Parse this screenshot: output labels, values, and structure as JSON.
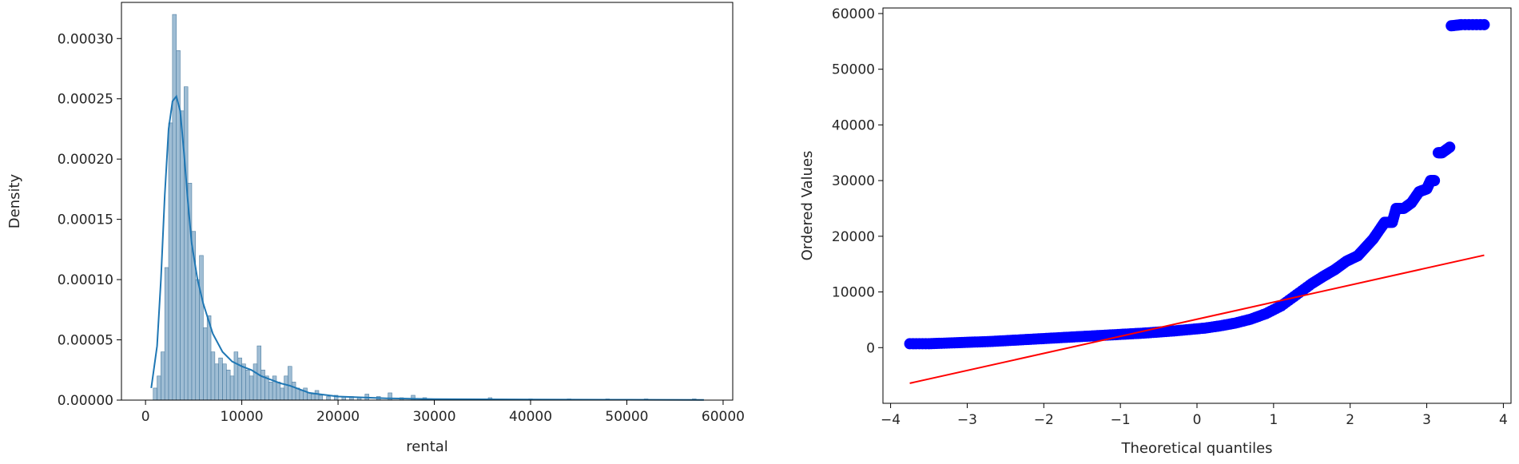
{
  "chart_data": [
    {
      "type": "bar",
      "subtype": "histogram with kde",
      "xlabel": "rental",
      "ylabel": "Density",
      "xlim": [
        -2500,
        61000
      ],
      "ylim": [
        0,
        0.00033
      ],
      "xticks": [
        0,
        10000,
        20000,
        30000,
        40000,
        50000,
        60000
      ],
      "xtick_labels": [
        "0",
        "10000",
        "20000",
        "30000",
        "40000",
        "50000",
        "60000"
      ],
      "yticks": [
        0,
        5e-05,
        0.0001,
        0.00015,
        0.0002,
        0.00025,
        0.0003
      ],
      "ytick_labels": [
        "0.00000",
        "0.00005",
        "0.00010",
        "0.00015",
        "0.00020",
        "0.00025",
        "0.00030"
      ],
      "grid": false,
      "colors": {
        "bars": "#7fa7c6",
        "bar_edge": "#4f7fa3",
        "kde": "#1f77b4"
      },
      "histogram": {
        "bin_width": 400,
        "bins": [
          [
            1000,
            1e-05
          ],
          [
            1400,
            2e-05
          ],
          [
            1800,
            4e-05
          ],
          [
            2200,
            0.00011
          ],
          [
            2600,
            0.00023
          ],
          [
            3000,
            0.00032
          ],
          [
            3400,
            0.00029
          ],
          [
            3800,
            0.00024
          ],
          [
            4200,
            0.00026
          ],
          [
            4600,
            0.00018
          ],
          [
            5000,
            0.00014
          ],
          [
            5400,
            0.0001
          ],
          [
            5800,
            0.00012
          ],
          [
            6200,
            6e-05
          ],
          [
            6600,
            7e-05
          ],
          [
            7000,
            4e-05
          ],
          [
            7400,
            3e-05
          ],
          [
            7800,
            3.5e-05
          ],
          [
            8200,
            3e-05
          ],
          [
            8600,
            2.5e-05
          ],
          [
            9000,
            2e-05
          ],
          [
            9400,
            4e-05
          ],
          [
            9800,
            3.5e-05
          ],
          [
            10200,
            3e-05
          ],
          [
            10600,
            2.5e-05
          ],
          [
            11000,
            2e-05
          ],
          [
            11400,
            3e-05
          ],
          [
            11800,
            4.5e-05
          ],
          [
            12200,
            2.5e-05
          ],
          [
            12600,
            2e-05
          ],
          [
            13000,
            1.5e-05
          ],
          [
            13400,
            2e-05
          ],
          [
            13800,
            1.5e-05
          ],
          [
            14200,
            1e-05
          ],
          [
            14600,
            2e-05
          ],
          [
            15000,
            2.8e-05
          ],
          [
            15400,
            1.5e-05
          ],
          [
            15800,
            1e-05
          ],
          [
            16200,
            8e-06
          ],
          [
            16600,
            1e-05
          ],
          [
            17000,
            6e-06
          ],
          [
            17400,
            5e-06
          ],
          [
            17800,
            8e-06
          ],
          [
            18200,
            4e-06
          ],
          [
            19000,
            3e-06
          ],
          [
            19800,
            4e-06
          ],
          [
            20600,
            3e-06
          ],
          [
            21400,
            3e-06
          ],
          [
            22200,
            2e-06
          ],
          [
            23000,
            5e-06
          ],
          [
            24200,
            3e-06
          ],
          [
            25400,
            6e-06
          ],
          [
            26600,
            2e-06
          ],
          [
            27800,
            4e-06
          ],
          [
            29000,
            2e-06
          ],
          [
            30200,
            1e-06
          ],
          [
            33000,
            1e-06
          ],
          [
            35800,
            2e-06
          ],
          [
            40000,
            1e-06
          ],
          [
            44000,
            1e-06
          ],
          [
            48000,
            1e-06
          ],
          [
            52000,
            1e-06
          ],
          [
            57000,
            1e-06
          ]
        ]
      },
      "kde": {
        "x": [
          600,
          1200,
          1600,
          2000,
          2400,
          2800,
          3200,
          3600,
          4000,
          4400,
          4800,
          5400,
          6000,
          7000,
          8000,
          9000,
          10000,
          11000,
          12000,
          13000,
          14000,
          15000,
          16000,
          17000,
          18000,
          20000,
          25000,
          30000,
          40000,
          50000,
          58000
        ],
        "y": [
          1e-05,
          4.5e-05,
          0.0001,
          0.00017,
          0.000225,
          0.000248,
          0.000252,
          0.00024,
          0.000205,
          0.000165,
          0.00013,
          0.0001,
          8e-05,
          5.5e-05,
          4e-05,
          3.2e-05,
          2.8e-05,
          2.5e-05,
          2e-05,
          1.7e-05,
          1.4e-05,
          1.2e-05,
          9e-06,
          6e-06,
          5e-06,
          3e-06,
          1.5e-06,
          8e-07,
          5e-07,
          3e-07,
          2e-07
        ]
      }
    },
    {
      "type": "scatter",
      "subtype": "probability plot",
      "xlabel": "Theoretical quantiles",
      "ylabel": "Ordered Values",
      "xlim": [
        -4.1,
        4.1
      ],
      "ylim": [
        -10000,
        61000
      ],
      "xticks": [
        -4,
        -3,
        -2,
        -1,
        0,
        1,
        2,
        3,
        4
      ],
      "xtick_labels": [
        "−4",
        "−3",
        "−2",
        "−1",
        "0",
        "1",
        "2",
        "3",
        "4"
      ],
      "yticks": [
        0,
        10000,
        20000,
        30000,
        40000,
        50000,
        60000
      ],
      "ytick_labels": [
        "0",
        "10000",
        "20000",
        "30000",
        "40000",
        "50000",
        "60000"
      ],
      "grid": false,
      "colors": {
        "points": "#0000ff",
        "fit_line": "#ff0000"
      },
      "fit_line": {
        "x": [
          -3.75,
          3.75
        ],
        "y": [
          -6400,
          16600
        ]
      },
      "points": {
        "x": [
          -3.75,
          -3.5,
          -3.3,
          -3.1,
          -2.9,
          -2.7,
          -2.5,
          -2.3,
          -2.1,
          -1.9,
          -1.7,
          -1.5,
          -1.3,
          -1.1,
          -0.9,
          -0.7,
          -0.5,
          -0.3,
          -0.1,
          0.1,
          0.3,
          0.5,
          0.7,
          0.9,
          1.1,
          1.3,
          1.5,
          1.65,
          1.8,
          1.95,
          2.1,
          2.2,
          2.3,
          2.4,
          2.45,
          2.55,
          2.6,
          2.7,
          2.8,
          2.9,
          3.0,
          3.05,
          3.1,
          3.15,
          3.2,
          3.3,
          3.32,
          3.45,
          3.75
        ],
        "y": [
          700,
          700,
          800,
          900,
          1000,
          1100,
          1250,
          1400,
          1550,
          1700,
          1850,
          2000,
          2150,
          2300,
          2450,
          2600,
          2800,
          3000,
          3250,
          3500,
          3900,
          4400,
          5100,
          6100,
          7500,
          9500,
          11500,
          12800,
          14000,
          15500,
          16500,
          18000,
          19500,
          21500,
          22500,
          22500,
          25000,
          25000,
          26000,
          28000,
          28500,
          30000,
          30000,
          35000,
          35000,
          36000,
          57800,
          58000,
          58000
        ]
      }
    }
  ]
}
